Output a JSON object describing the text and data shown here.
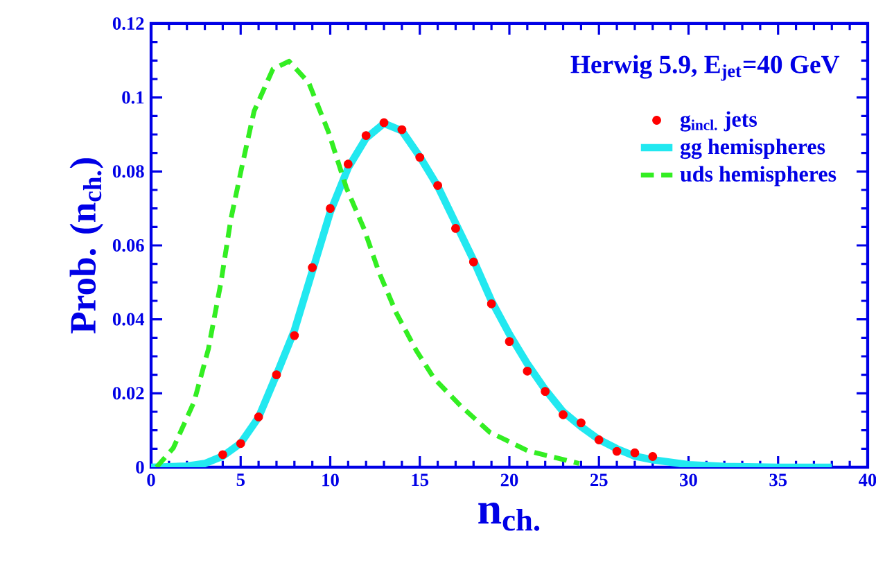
{
  "chart_data": {
    "type": "line",
    "xlabel": "n$_{ch.}$",
    "ylabel": "Prob. (n$_{ch.}$)",
    "annotations": [
      "Herwig 5.9, E$_{jet}$=40 GeV"
    ],
    "xlim": [
      0,
      40
    ],
    "ylim": [
      0,
      0.12
    ],
    "xticks": [
      0,
      5,
      10,
      15,
      20,
      25,
      30,
      35,
      40
    ],
    "yticks": [
      0,
      0.02,
      0.04,
      0.06,
      0.08,
      0.1,
      0.12
    ],
    "legend": "top right",
    "grid": false,
    "series": [
      {
        "name": "g$_{incl.}$ jets",
        "type": "scatter",
        "color": "#ff0000",
        "x": [
          4,
          5,
          6,
          7,
          8,
          9,
          10,
          11,
          12,
          13,
          14,
          15,
          16,
          17,
          18,
          19,
          20,
          21,
          22,
          23,
          24,
          25,
          26,
          27,
          28
        ],
        "values": [
          0.0034,
          0.0064,
          0.0136,
          0.025,
          0.0356,
          0.054,
          0.07,
          0.082,
          0.0897,
          0.0932,
          0.0913,
          0.0838,
          0.0762,
          0.0646,
          0.0555,
          0.0442,
          0.034,
          0.026,
          0.0205,
          0.0142,
          0.012,
          0.0074,
          0.0043,
          0.0039,
          0.0029
        ]
      },
      {
        "name": "gg hemispheres",
        "line_style": "solid",
        "color": "#22e8f0",
        "x": [
          0,
          2,
          3,
          4,
          5,
          6,
          7,
          8,
          9,
          10,
          11,
          12,
          13,
          14,
          15,
          16,
          17,
          18,
          19,
          20,
          21,
          22,
          23,
          24,
          25,
          26,
          27,
          28,
          30,
          32,
          35,
          38
        ],
        "values": [
          0,
          0.0003,
          0.001,
          0.003,
          0.0065,
          0.0135,
          0.025,
          0.037,
          0.053,
          0.069,
          0.081,
          0.089,
          0.093,
          0.091,
          0.084,
          0.076,
          0.066,
          0.056,
          0.045,
          0.036,
          0.028,
          0.021,
          0.015,
          0.011,
          0.0075,
          0.005,
          0.003,
          0.002,
          0.0007,
          0.0002,
          0,
          0
        ]
      },
      {
        "name": "uds hemispheres",
        "line_style": "dashed",
        "color": "#33ee22",
        "x": [
          0.3,
          1.24,
          2.4,
          3.2,
          3.9,
          4.45,
          5.1,
          5.75,
          6.8,
          7.7,
          8.8,
          9.9,
          10.9,
          11.9,
          12.7,
          13.7,
          14.8,
          15.8,
          17.3,
          18.9,
          21,
          23.9
        ],
        "values": [
          0,
          0.0052,
          0.0177,
          0.032,
          0.05,
          0.067,
          0.082,
          0.0963,
          0.1077,
          0.1098,
          0.104,
          0.0907,
          0.0756,
          0.0643,
          0.053,
          0.0416,
          0.0316,
          0.024,
          0.0165,
          0.0095,
          0.0045,
          0.001
        ]
      }
    ]
  }
}
